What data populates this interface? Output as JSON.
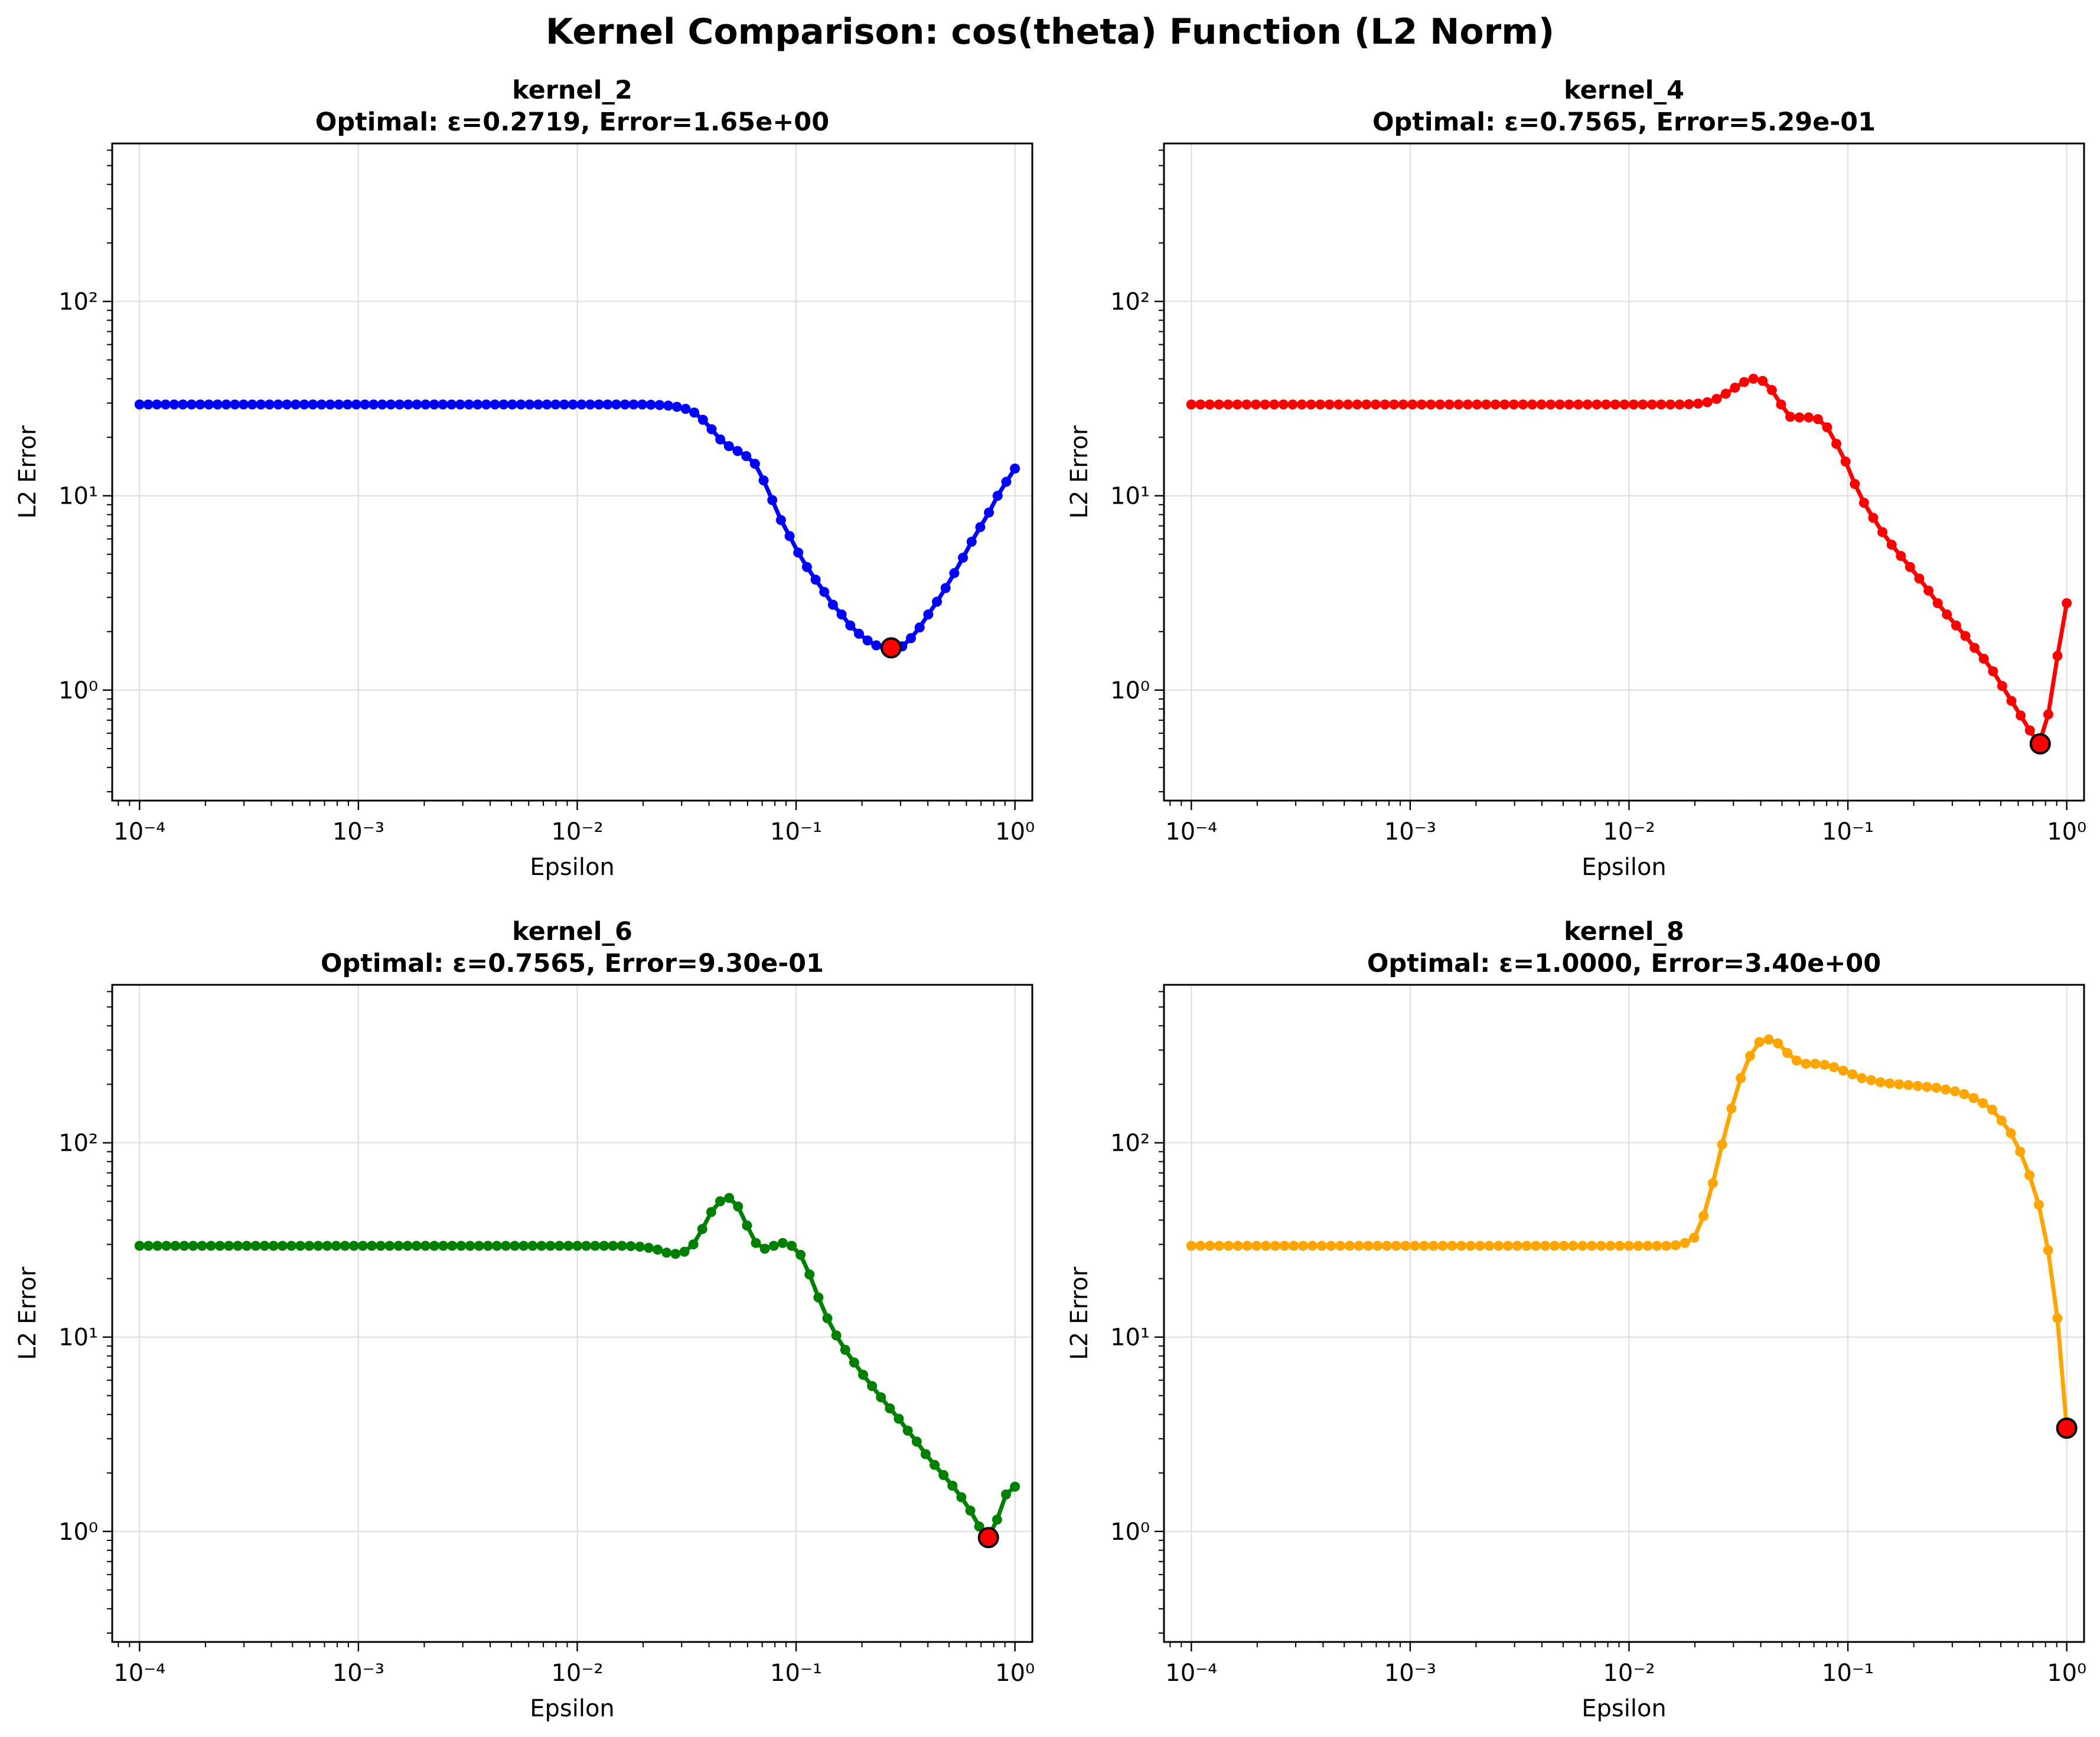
{
  "figure": {
    "title": "Kernel Comparison: cos(theta) Function (L2 Norm)"
  },
  "chart_data": [
    {
      "type": "line",
      "name": "kernel_2",
      "title": "kernel_2",
      "subtitle": "Optimal: ε=0.2719, Error=1.65e+00",
      "xlabel": "Epsilon",
      "ylabel": "L2 Error",
      "xscale": "log",
      "yscale": "log",
      "xlim": [
        7.5e-05,
        1.2
      ],
      "ylim": [
        0.27,
        650
      ],
      "xticks": [
        0.0001,
        0.001,
        0.01,
        0.1,
        1
      ],
      "xtick_labels": [
        "10⁻⁴",
        "10⁻³",
        "10⁻²",
        "10⁻¹",
        "10⁰"
      ],
      "yticks": [
        1,
        10,
        100
      ],
      "ytick_labels": [
        "10⁰",
        "10¹",
        "10²"
      ],
      "grid": true,
      "color": "#0000ff",
      "optimal": {
        "x": 0.2719,
        "y": 1.65,
        "color": "#ff0000"
      },
      "series_y": [
        29.5,
        29.5,
        29.5,
        29.5,
        29.5,
        29.5,
        29.5,
        29.5,
        29.5,
        29.5,
        29.5,
        29.5,
        29.5,
        29.5,
        29.5,
        29.5,
        29.5,
        29.5,
        29.5,
        29.5,
        29.5,
        29.5,
        29.5,
        29.5,
        29.5,
        29.5,
        29.5,
        29.5,
        29.5,
        29.5,
        29.5,
        29.5,
        29.5,
        29.5,
        29.5,
        29.5,
        29.5,
        29.5,
        29.5,
        29.5,
        29.5,
        29.5,
        29.5,
        29.5,
        29.5,
        29.5,
        29.5,
        29.5,
        29.5,
        29.5,
        29.5,
        29.5,
        29.5,
        29.5,
        29.5,
        29.5,
        29.5,
        29.5,
        29.5,
        29.4,
        29.3,
        29.1,
        28.7,
        28,
        26.8,
        24.6,
        22,
        19.5,
        18,
        17,
        16,
        14.6,
        12,
        9.5,
        7.5,
        6.2,
        5.1,
        4.3,
        3.7,
        3.2,
        2.75,
        2.45,
        2.15,
        1.95,
        1.8,
        1.7,
        1.66,
        1.65,
        1.68,
        1.85,
        2.1,
        2.45,
        2.85,
        3.35,
        4,
        4.8,
        5.8,
        6.9,
        8.2,
        10,
        11.8,
        13.8
      ]
    },
    {
      "type": "line",
      "name": "kernel_4",
      "title": "kernel_4",
      "subtitle": "Optimal: ε=0.7565, Error=5.29e-01",
      "xlabel": "Epsilon",
      "ylabel": "L2 Error",
      "xscale": "log",
      "yscale": "log",
      "xlim": [
        7.5e-05,
        1.2
      ],
      "ylim": [
        0.27,
        650
      ],
      "xticks": [
        0.0001,
        0.001,
        0.01,
        0.1,
        1
      ],
      "xtick_labels": [
        "10⁻⁴",
        "10⁻³",
        "10⁻²",
        "10⁻¹",
        "10⁰"
      ],
      "yticks": [
        1,
        10,
        100
      ],
      "ytick_labels": [
        "10⁰",
        "10¹",
        "10²"
      ],
      "grid": true,
      "color": "#ff0000",
      "optimal": {
        "x": 0.7565,
        "y": 0.529,
        "color": "#ff0000"
      },
      "series_y": [
        29.5,
        29.5,
        29.5,
        29.5,
        29.5,
        29.5,
        29.5,
        29.5,
        29.5,
        29.5,
        29.5,
        29.5,
        29.5,
        29.5,
        29.5,
        29.5,
        29.5,
        29.5,
        29.5,
        29.5,
        29.5,
        29.5,
        29.5,
        29.5,
        29.5,
        29.5,
        29.5,
        29.5,
        29.5,
        29.5,
        29.5,
        29.5,
        29.5,
        29.5,
        29.5,
        29.5,
        29.5,
        29.5,
        29.5,
        29.5,
        29.5,
        29.5,
        29.5,
        29.5,
        29.5,
        29.5,
        29.5,
        29.5,
        29.5,
        29.5,
        29.5,
        29.5,
        29.5,
        29.5,
        29.6,
        29.8,
        30.3,
        31.5,
        33.5,
        36,
        38.5,
        40,
        39,
        35,
        29.5,
        25.5,
        25.3,
        25.3,
        24.8,
        22.5,
        18.5,
        15,
        11.5,
        9.2,
        7.7,
        6.5,
        5.6,
        4.9,
        4.3,
        3.75,
        3.25,
        2.8,
        2.45,
        2.15,
        1.9,
        1.65,
        1.45,
        1.25,
        1.05,
        0.88,
        0.74,
        0.62,
        0.529,
        0.75,
        1.5,
        2.8
      ]
    },
    {
      "type": "line",
      "name": "kernel_6",
      "title": "kernel_6",
      "subtitle": "Optimal: ε=0.7565, Error=9.30e-01",
      "xlabel": "Epsilon",
      "ylabel": "L2 Error",
      "xscale": "log",
      "yscale": "log",
      "xlim": [
        7.5e-05,
        1.2
      ],
      "ylim": [
        0.27,
        650
      ],
      "xticks": [
        0.0001,
        0.001,
        0.01,
        0.1,
        1
      ],
      "xtick_labels": [
        "10⁻⁴",
        "10⁻³",
        "10⁻²",
        "10⁻¹",
        "10⁰"
      ],
      "yticks": [
        1,
        10,
        100
      ],
      "ytick_labels": [
        "10⁰",
        "10¹",
        "10²"
      ],
      "grid": true,
      "color": "#008000",
      "optimal": {
        "x": 0.7565,
        "y": 0.93,
        "color": "#ff0000"
      },
      "series_y": [
        29.5,
        29.5,
        29.5,
        29.5,
        29.5,
        29.5,
        29.5,
        29.5,
        29.5,
        29.5,
        29.5,
        29.5,
        29.5,
        29.5,
        29.5,
        29.5,
        29.5,
        29.5,
        29.5,
        29.5,
        29.5,
        29.5,
        29.5,
        29.5,
        29.5,
        29.5,
        29.5,
        29.5,
        29.5,
        29.5,
        29.5,
        29.5,
        29.5,
        29.5,
        29.5,
        29.5,
        29.5,
        29.5,
        29.5,
        29.5,
        29.5,
        29.5,
        29.5,
        29.5,
        29.5,
        29.5,
        29.5,
        29.5,
        29.5,
        29.5,
        29.5,
        29.5,
        29.5,
        29.5,
        29.5,
        29.4,
        29.2,
        28.8,
        28.2,
        27.2,
        26.8,
        27.5,
        30,
        36,
        44,
        50,
        52,
        47,
        37.5,
        30.5,
        28.5,
        29.5,
        30.5,
        29.5,
        26.5,
        21,
        16,
        12.5,
        10.2,
        8.6,
        7.4,
        6.4,
        5.6,
        4.9,
        4.3,
        3.8,
        3.3,
        2.9,
        2.5,
        2.2,
        1.95,
        1.72,
        1.5,
        1.28,
        1.06,
        0.93,
        1.15,
        1.55,
        1.7
      ]
    },
    {
      "type": "line",
      "name": "kernel_8",
      "title": "kernel_8",
      "subtitle": "Optimal: ε=1.0000, Error=3.40e+00",
      "xlabel": "Epsilon",
      "ylabel": "L2 Error",
      "xscale": "log",
      "yscale": "log",
      "xlim": [
        7.5e-05,
        1.2
      ],
      "ylim": [
        0.27,
        650
      ],
      "xticks": [
        0.0001,
        0.001,
        0.01,
        0.1,
        1
      ],
      "xtick_labels": [
        "10⁻⁴",
        "10⁻³",
        "10⁻²",
        "10⁻¹",
        "10⁰"
      ],
      "yticks": [
        1,
        10,
        100
      ],
      "ytick_labels": [
        "10⁰",
        "10¹",
        "10²"
      ],
      "grid": true,
      "color": "#ffa500",
      "optimal": {
        "x": 1.0,
        "y": 3.4,
        "color": "#ff0000"
      },
      "series_y": [
        29.5,
        29.5,
        29.5,
        29.5,
        29.5,
        29.5,
        29.5,
        29.5,
        29.5,
        29.5,
        29.5,
        29.5,
        29.5,
        29.5,
        29.5,
        29.5,
        29.5,
        29.5,
        29.5,
        29.5,
        29.5,
        29.5,
        29.5,
        29.5,
        29.5,
        29.5,
        29.5,
        29.5,
        29.5,
        29.5,
        29.5,
        29.5,
        29.5,
        29.5,
        29.5,
        29.5,
        29.5,
        29.5,
        29.5,
        29.5,
        29.5,
        29.5,
        29.5,
        29.5,
        29.5,
        29.5,
        29.5,
        29.5,
        29.5,
        29.5,
        29.5,
        29.5,
        29.7,
        30.5,
        32.5,
        42,
        62,
        98,
        150,
        215,
        280,
        330,
        340,
        325,
        290,
        265,
        255,
        255,
        252,
        245,
        235,
        225,
        215,
        210,
        205,
        202,
        200,
        198,
        196,
        194,
        192,
        188,
        184,
        178,
        170,
        160,
        148,
        130,
        112,
        90,
        68,
        48,
        28,
        12.5,
        3.4
      ]
    }
  ]
}
